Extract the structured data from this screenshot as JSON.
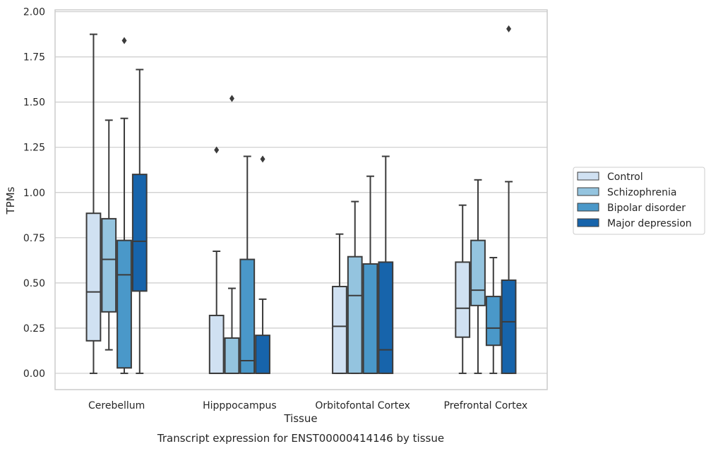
{
  "chart_data": {
    "type": "boxplot",
    "xlabel": "Tissue",
    "ylabel": "TPMs",
    "caption": "Transcript expression for ENST00000414146 by tissue",
    "ylim": [
      -0.09,
      2.01
    ],
    "yticks": [
      "0.00",
      "0.25",
      "0.50",
      "0.75",
      "1.00",
      "1.25",
      "1.50",
      "1.75",
      "2.00"
    ],
    "grid": true,
    "legend_position": "right",
    "categories": [
      "Cerebellum",
      "Hipppocampus",
      "Orbitofontal Cortex",
      "Prefrontal Cortex"
    ],
    "series": [
      {
        "name": "Control",
        "color": "#d0e1f2",
        "boxes": [
          {
            "whislo": 0.0,
            "q1": 0.18,
            "med": 0.45,
            "q3": 0.885,
            "whishi": 1.875,
            "fliers": []
          },
          {
            "whislo": 0.0,
            "q1": 0.0,
            "med": 0.0,
            "q3": 0.32,
            "whishi": 0.675,
            "fliers": [
              1.235
            ]
          },
          {
            "whislo": 0.0,
            "q1": 0.0,
            "med": 0.26,
            "q3": 0.48,
            "whishi": 0.77,
            "fliers": []
          },
          {
            "whislo": 0.0,
            "q1": 0.2,
            "med": 0.36,
            "q3": 0.615,
            "whishi": 0.93,
            "fliers": []
          }
        ]
      },
      {
        "name": "Schizophrenia",
        "color": "#94c4df",
        "boxes": [
          {
            "whislo": 0.13,
            "q1": 0.34,
            "med": 0.63,
            "q3": 0.855,
            "whishi": 1.4,
            "fliers": []
          },
          {
            "whislo": 0.0,
            "q1": 0.0,
            "med": 0.0,
            "q3": 0.195,
            "whishi": 0.47,
            "fliers": [
              1.52
            ]
          },
          {
            "whislo": 0.0,
            "q1": 0.0,
            "med": 0.43,
            "q3": 0.645,
            "whishi": 0.95,
            "fliers": []
          },
          {
            "whislo": 0.0,
            "q1": 0.375,
            "med": 0.46,
            "q3": 0.735,
            "whishi": 1.07,
            "fliers": []
          }
        ]
      },
      {
        "name": "Bipolar disorder",
        "color": "#4a98c9",
        "boxes": [
          {
            "whislo": 0.0,
            "q1": 0.03,
            "med": 0.545,
            "q3": 0.735,
            "whishi": 1.41,
            "fliers": [
              1.84
            ]
          },
          {
            "whislo": 0.0,
            "q1": 0.0,
            "med": 0.07,
            "q3": 0.63,
            "whishi": 1.2,
            "fliers": []
          },
          {
            "whislo": 0.0,
            "q1": 0.0,
            "med": 0.0,
            "q3": 0.605,
            "whishi": 1.09,
            "fliers": []
          },
          {
            "whislo": 0.0,
            "q1": 0.155,
            "med": 0.25,
            "q3": 0.425,
            "whishi": 0.64,
            "fliers": []
          }
        ]
      },
      {
        "name": "Major depression",
        "color": "#1764ab",
        "boxes": [
          {
            "whislo": 0.0,
            "q1": 0.455,
            "med": 0.73,
            "q3": 1.1,
            "whishi": 1.68,
            "fliers": []
          },
          {
            "whislo": 0.0,
            "q1": 0.0,
            "med": 0.0,
            "q3": 0.21,
            "whishi": 0.41,
            "fliers": [
              1.185
            ]
          },
          {
            "whislo": 0.0,
            "q1": 0.0,
            "med": 0.13,
            "q3": 0.615,
            "whishi": 1.2,
            "fliers": []
          },
          {
            "whislo": 0.0,
            "q1": 0.0,
            "med": 0.285,
            "q3": 0.515,
            "whishi": 1.06,
            "fliers": [
              1.905
            ]
          }
        ]
      }
    ]
  }
}
